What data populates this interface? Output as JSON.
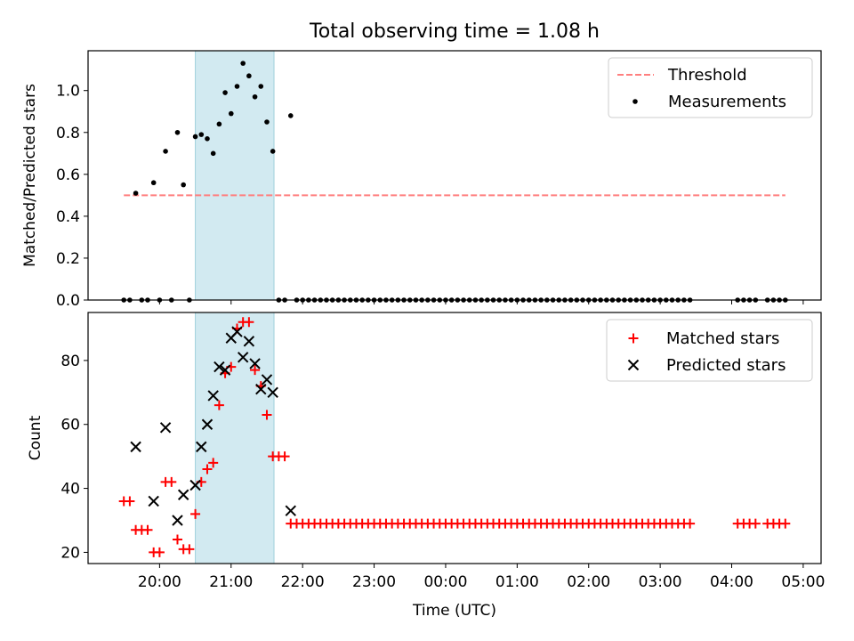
{
  "title": "Total observing time = 1.08 h",
  "chart_data": [
    {
      "type": "scatter",
      "ylabel": "Matched/Predicted stars",
      "ylim": [
        0,
        1.19
      ],
      "yticks": [
        0.0,
        0.2,
        0.4,
        0.6,
        0.8,
        1.0
      ],
      "ytick_labels": [
        "0.0",
        "0.2",
        "0.4",
        "0.6",
        "0.8",
        "1.0"
      ],
      "legend_position": "top-right",
      "threshold": {
        "name": "Threshold",
        "value": 0.5,
        "x_start": "19:30",
        "x_end": "04:45",
        "color": "#ff7f7f"
      },
      "series": [
        {
          "name": "Measurements",
          "color": "#000000",
          "points": [
            [
              "19:30",
              0.0
            ],
            [
              "19:35",
              0.0
            ],
            [
              "19:40",
              0.51
            ],
            [
              "19:45",
              0.0
            ],
            [
              "19:50",
              0.0
            ],
            [
              "19:55",
              0.56
            ],
            [
              "20:00",
              0.0
            ],
            [
              "20:05",
              0.71
            ],
            [
              "20:10",
              0.0
            ],
            [
              "20:15",
              0.8
            ],
            [
              "20:20",
              0.55
            ],
            [
              "20:25",
              0.0
            ],
            [
              "20:30",
              0.78
            ],
            [
              "20:35",
              0.79
            ],
            [
              "20:40",
              0.77
            ],
            [
              "20:45",
              0.7
            ],
            [
              "20:50",
              0.84
            ],
            [
              "20:55",
              0.99
            ],
            [
              "21:00",
              0.89
            ],
            [
              "21:05",
              1.02
            ],
            [
              "21:10",
              1.13
            ],
            [
              "21:15",
              1.07
            ],
            [
              "21:20",
              0.97
            ],
            [
              "21:25",
              1.02
            ],
            [
              "21:30",
              0.85
            ],
            [
              "21:35",
              0.71
            ],
            [
              "21:40",
              0.0
            ],
            [
              "21:45",
              0.0
            ],
            [
              "21:50",
              0.88
            ],
            [
              "21:55",
              0.0
            ],
            [
              "22:00",
              0.0
            ],
            [
              "22:05",
              0.0
            ],
            [
              "22:10",
              0.0
            ],
            [
              "22:15",
              0.0
            ],
            [
              "22:20",
              0.0
            ],
            [
              "22:25",
              0.0
            ],
            [
              "22:30",
              0.0
            ],
            [
              "22:35",
              0.0
            ],
            [
              "22:40",
              0.0
            ],
            [
              "22:45",
              0.0
            ],
            [
              "22:50",
              0.0
            ],
            [
              "22:55",
              0.0
            ],
            [
              "23:00",
              0.0
            ],
            [
              "23:05",
              0.0
            ],
            [
              "23:10",
              0.0
            ],
            [
              "23:15",
              0.0
            ],
            [
              "23:20",
              0.0
            ],
            [
              "23:25",
              0.0
            ],
            [
              "23:30",
              0.0
            ],
            [
              "23:35",
              0.0
            ],
            [
              "23:40",
              0.0
            ],
            [
              "23:45",
              0.0
            ],
            [
              "23:50",
              0.0
            ],
            [
              "23:55",
              0.0
            ],
            [
              "00:00",
              0.0
            ],
            [
              "00:05",
              0.0
            ],
            [
              "00:10",
              0.0
            ],
            [
              "00:15",
              0.0
            ],
            [
              "00:20",
              0.0
            ],
            [
              "00:25",
              0.0
            ],
            [
              "00:30",
              0.0
            ],
            [
              "00:35",
              0.0
            ],
            [
              "00:40",
              0.0
            ],
            [
              "00:45",
              0.0
            ],
            [
              "00:50",
              0.0
            ],
            [
              "00:55",
              0.0
            ],
            [
              "01:00",
              0.0
            ],
            [
              "01:05",
              0.0
            ],
            [
              "01:10",
              0.0
            ],
            [
              "01:15",
              0.0
            ],
            [
              "01:20",
              0.0
            ],
            [
              "01:25",
              0.0
            ],
            [
              "01:30",
              0.0
            ],
            [
              "01:35",
              0.0
            ],
            [
              "01:40",
              0.0
            ],
            [
              "01:45",
              0.0
            ],
            [
              "01:50",
              0.0
            ],
            [
              "01:55",
              0.0
            ],
            [
              "02:00",
              0.0
            ],
            [
              "02:05",
              0.0
            ],
            [
              "02:10",
              0.0
            ],
            [
              "02:15",
              0.0
            ],
            [
              "02:20",
              0.0
            ],
            [
              "02:25",
              0.0
            ],
            [
              "02:30",
              0.0
            ],
            [
              "02:35",
              0.0
            ],
            [
              "02:40",
              0.0
            ],
            [
              "02:45",
              0.0
            ],
            [
              "02:50",
              0.0
            ],
            [
              "02:55",
              0.0
            ],
            [
              "03:00",
              0.0
            ],
            [
              "03:05",
              0.0
            ],
            [
              "03:10",
              0.0
            ],
            [
              "03:15",
              0.0
            ],
            [
              "03:20",
              0.0
            ],
            [
              "03:25",
              0.0
            ],
            [
              "04:05",
              0.0
            ],
            [
              "04:10",
              0.0
            ],
            [
              "04:15",
              0.0
            ],
            [
              "04:20",
              0.0
            ],
            [
              "04:30",
              0.0
            ],
            [
              "04:35",
              0.0
            ],
            [
              "04:40",
              0.0
            ],
            [
              "04:45",
              0.0
            ]
          ]
        }
      ]
    },
    {
      "type": "scatter",
      "xlabel": "Time (UTC)",
      "ylabel": "Count",
      "ylim": [
        16.5,
        95
      ],
      "yticks": [
        20,
        40,
        60,
        80
      ],
      "ytick_labels": [
        "20",
        "40",
        "60",
        "80"
      ],
      "xlim": [
        "19:00",
        "05:15"
      ],
      "xticks": [
        "20:00",
        "21:00",
        "22:00",
        "23:00",
        "00:00",
        "01:00",
        "02:00",
        "03:00",
        "04:00",
        "05:00"
      ],
      "xtick_labels": [
        "20:00",
        "21:00",
        "22:00",
        "23:00",
        "00:00",
        "01:00",
        "02:00",
        "03:00",
        "04:00",
        "05:00"
      ],
      "legend_position": "top-right",
      "highlight_range": [
        "20:30",
        "21:36"
      ],
      "highlight_color": "#add8e6",
      "series": [
        {
          "name": "Matched stars",
          "color": "#ff0000",
          "marker": "plus",
          "points": [
            [
              "19:30",
              36
            ],
            [
              "19:35",
              36
            ],
            [
              "19:40",
              27
            ],
            [
              "19:45",
              27
            ],
            [
              "19:50",
              27
            ],
            [
              "19:55",
              20
            ],
            [
              "20:00",
              20
            ],
            [
              "20:05",
              42
            ],
            [
              "20:10",
              42
            ],
            [
              "20:15",
              24
            ],
            [
              "20:20",
              21
            ],
            [
              "20:25",
              21
            ],
            [
              "20:30",
              32
            ],
            [
              "20:35",
              42
            ],
            [
              "20:40",
              46
            ],
            [
              "20:45",
              48
            ],
            [
              "20:50",
              66
            ],
            [
              "20:55",
              76
            ],
            [
              "21:00",
              78
            ],
            [
              "21:05",
              90
            ],
            [
              "21:10",
              92
            ],
            [
              "21:15",
              92
            ],
            [
              "21:20",
              77
            ],
            [
              "21:25",
              72
            ],
            [
              "21:30",
              63
            ],
            [
              "21:35",
              50
            ],
            [
              "21:40",
              50
            ],
            [
              "21:45",
              50
            ],
            [
              "21:50",
              29
            ],
            [
              "21:55",
              29
            ],
            [
              "22:00",
              29
            ],
            [
              "22:05",
              29
            ],
            [
              "22:10",
              29
            ],
            [
              "22:15",
              29
            ],
            [
              "22:20",
              29
            ],
            [
              "22:25",
              29
            ],
            [
              "22:30",
              29
            ],
            [
              "22:35",
              29
            ],
            [
              "22:40",
              29
            ],
            [
              "22:45",
              29
            ],
            [
              "22:50",
              29
            ],
            [
              "22:55",
              29
            ],
            [
              "23:00",
              29
            ],
            [
              "23:05",
              29
            ],
            [
              "23:10",
              29
            ],
            [
              "23:15",
              29
            ],
            [
              "23:20",
              29
            ],
            [
              "23:25",
              29
            ],
            [
              "23:30",
              29
            ],
            [
              "23:35",
              29
            ],
            [
              "23:40",
              29
            ],
            [
              "23:45",
              29
            ],
            [
              "23:50",
              29
            ],
            [
              "23:55",
              29
            ],
            [
              "00:00",
              29
            ],
            [
              "00:05",
              29
            ],
            [
              "00:10",
              29
            ],
            [
              "00:15",
              29
            ],
            [
              "00:20",
              29
            ],
            [
              "00:25",
              29
            ],
            [
              "00:30",
              29
            ],
            [
              "00:35",
              29
            ],
            [
              "00:40",
              29
            ],
            [
              "00:45",
              29
            ],
            [
              "00:50",
              29
            ],
            [
              "00:55",
              29
            ],
            [
              "01:00",
              29
            ],
            [
              "01:05",
              29
            ],
            [
              "01:10",
              29
            ],
            [
              "01:15",
              29
            ],
            [
              "01:20",
              29
            ],
            [
              "01:25",
              29
            ],
            [
              "01:30",
              29
            ],
            [
              "01:35",
              29
            ],
            [
              "01:40",
              29
            ],
            [
              "01:45",
              29
            ],
            [
              "01:50",
              29
            ],
            [
              "01:55",
              29
            ],
            [
              "02:00",
              29
            ],
            [
              "02:05",
              29
            ],
            [
              "02:10",
              29
            ],
            [
              "02:15",
              29
            ],
            [
              "02:20",
              29
            ],
            [
              "02:25",
              29
            ],
            [
              "02:30",
              29
            ],
            [
              "02:35",
              29
            ],
            [
              "02:40",
              29
            ],
            [
              "02:45",
              29
            ],
            [
              "02:50",
              29
            ],
            [
              "02:55",
              29
            ],
            [
              "03:00",
              29
            ],
            [
              "03:05",
              29
            ],
            [
              "03:10",
              29
            ],
            [
              "03:15",
              29
            ],
            [
              "03:20",
              29
            ],
            [
              "03:25",
              29
            ],
            [
              "04:05",
              29
            ],
            [
              "04:10",
              29
            ],
            [
              "04:15",
              29
            ],
            [
              "04:20",
              29
            ],
            [
              "04:30",
              29
            ],
            [
              "04:35",
              29
            ],
            [
              "04:40",
              29
            ],
            [
              "04:45",
              29
            ]
          ]
        },
        {
          "name": "Predicted stars",
          "color": "#000000",
          "marker": "x",
          "points": [
            [
              "19:40",
              53
            ],
            [
              "19:55",
              36
            ],
            [
              "20:05",
              59
            ],
            [
              "20:15",
              30
            ],
            [
              "20:20",
              38
            ],
            [
              "20:30",
              41
            ],
            [
              "20:35",
              53
            ],
            [
              "20:40",
              60
            ],
            [
              "20:45",
              69
            ],
            [
              "20:50",
              78
            ],
            [
              "20:55",
              77
            ],
            [
              "21:00",
              87
            ],
            [
              "21:05",
              89
            ],
            [
              "21:10",
              81
            ],
            [
              "21:15",
              86
            ],
            [
              "21:20",
              79
            ],
            [
              "21:25",
              71
            ],
            [
              "21:30",
              74
            ],
            [
              "21:35",
              70
            ],
            [
              "21:50",
              33
            ]
          ]
        }
      ]
    }
  ]
}
